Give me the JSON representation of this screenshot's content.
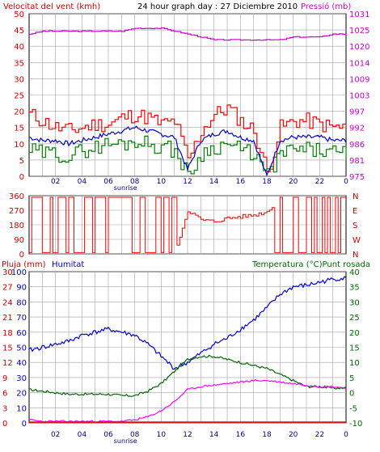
{
  "header": {
    "left_title": "Velocitat del vent (kmh)",
    "center_title": "24 hour graph day : 27 Diciembre 2010",
    "right_title": "Pressió (mb)"
  },
  "x_axis": {
    "ticks": [
      "02",
      "04",
      "06",
      "08",
      "10",
      "12",
      "14",
      "16",
      "18",
      "20",
      "22"
    ],
    "sunrise_label": "sunrise",
    "extra_tick": "0"
  },
  "colors": {
    "wind_gust": "#ff0000",
    "wind_avg": "#0000cc",
    "wind_speed": "#008000",
    "pressure": "#cc00cc",
    "direction": "#ff0000",
    "rain": "#ff0000",
    "humidity": "#0000cc",
    "temperature": "#006600",
    "dew_point": "#ff00ff",
    "grid": "#9ea1a4",
    "frame": "#000000"
  },
  "chart_data": [
    {
      "type": "line",
      "title": "24 hour graph day : 27 Diciembre 2010",
      "left_axis": {
        "label": "Velocitat del vent (kmh)",
        "ticks": [
          0,
          5,
          10,
          15,
          20,
          25,
          30,
          35,
          40,
          45,
          50
        ],
        "ylim": [
          0,
          50
        ]
      },
      "right_axis": {
        "label": "Pressió (mb)",
        "ticks": [
          975,
          981,
          986,
          992,
          997,
          1003,
          1009,
          1014,
          1020,
          1025,
          1031
        ],
        "ylim": [
          975,
          1031
        ]
      },
      "x": [
        0,
        1,
        2,
        3,
        4,
        5,
        6,
        7,
        8,
        9,
        10,
        11,
        12,
        13,
        14,
        15,
        16,
        17,
        18,
        19,
        20,
        21,
        22,
        23,
        24
      ],
      "series": [
        {
          "name": "Velocitat del vent (kmh)",
          "axis": "left",
          "values": [
            19,
            17,
            15,
            14,
            15,
            16,
            16,
            18,
            19,
            18,
            16,
            17,
            5,
            14,
            19,
            21,
            17,
            14,
            1,
            15,
            17,
            17,
            16,
            15,
            15
          ]
        },
        {
          "name": "",
          "axis": "left",
          "values": [
            12,
            11,
            11,
            10,
            11,
            12,
            13,
            14,
            15,
            14,
            13,
            12,
            2,
            11,
            13,
            14,
            12,
            11,
            0,
            11,
            12,
            12,
            12,
            11,
            11
          ]
        },
        {
          "name": "",
          "axis": "left",
          "values": [
            8,
            7,
            7,
            6,
            8,
            9,
            10,
            10,
            11,
            10,
            9,
            8,
            0,
            7,
            9,
            10,
            8,
            7,
            0,
            7,
            8,
            8,
            8,
            7,
            7
          ]
        },
        {
          "name": "Pressió (mb)",
          "axis": "right",
          "values": [
            1024,
            1025,
            1025,
            1025,
            1025,
            1025,
            1025,
            1025,
            1026,
            1026,
            1026,
            1025,
            1024,
            1023,
            1022,
            1022,
            1022,
            1022,
            1022,
            1022,
            1023,
            1023,
            1023,
            1024,
            1024
          ]
        }
      ]
    },
    {
      "type": "line",
      "left_axis": {
        "ticks": [
          0,
          90,
          180,
          270,
          360
        ],
        "ylim": [
          0,
          360
        ]
      },
      "right_axis": {
        "ticks": [
          "N",
          "W",
          "S",
          "E",
          "N"
        ]
      },
      "x": [
        0,
        1,
        2,
        3,
        4,
        5,
        6,
        7,
        8,
        9,
        10,
        11,
        12,
        13,
        14,
        15,
        16,
        17,
        18,
        19,
        20,
        21,
        22,
        23,
        24
      ],
      "series": [
        {
          "name": "",
          "values": [
            350,
            10,
            350,
            20,
            340,
            5,
            355,
            15,
            350,
            10,
            360,
            5,
            270,
            210,
            200,
            220,
            230,
            240,
            260,
            350,
            10,
            350,
            20,
            350,
            0
          ]
        }
      ]
    },
    {
      "type": "line",
      "left_axis_rain": {
        "label": "Pluja (mm)",
        "ticks": [
          0,
          3,
          6,
          9,
          12,
          15,
          18,
          21,
          24,
          27,
          30
        ],
        "ylim": [
          0,
          30
        ]
      },
      "left_axis_humidity": {
        "label": "Humitat",
        "ticks": [
          0,
          10,
          20,
          30,
          40,
          50,
          60,
          70,
          80,
          90,
          100
        ],
        "ylim": [
          0,
          100
        ]
      },
      "right_axis": {
        "label": "Temperatura (°C)Punt rosada",
        "ticks": [
          -10,
          -5,
          0,
          5,
          10,
          15,
          20,
          25,
          30,
          35,
          40
        ],
        "ylim": [
          -10,
          40
        ]
      },
      "x": [
        0,
        1,
        2,
        3,
        4,
        5,
        6,
        7,
        8,
        9,
        10,
        11,
        12,
        13,
        14,
        15,
        16,
        17,
        18,
        19,
        20,
        21,
        22,
        23,
        24
      ],
      "series": [
        {
          "name": "Pluja (mm)",
          "axis": "rain",
          "values": [
            0,
            0,
            0,
            0,
            0,
            0,
            0,
            0,
            0,
            0,
            0,
            0,
            0,
            0,
            0,
            0,
            0,
            0,
            0,
            0,
            0,
            0,
            0,
            0,
            0
          ]
        },
        {
          "name": "Humitat",
          "axis": "humidity",
          "values": [
            48,
            50,
            52,
            54,
            58,
            60,
            62,
            60,
            58,
            52,
            44,
            36,
            40,
            46,
            52,
            56,
            62,
            68,
            76,
            85,
            90,
            91,
            93,
            95,
            96
          ]
        },
        {
          "name": "Temperatura (°C)",
          "axis": "temp",
          "values": [
            1,
            0.5,
            0,
            -0.5,
            -0.5,
            -0.5,
            -0.5,
            -1,
            -1,
            0.5,
            3,
            7,
            11,
            12,
            12,
            11,
            10,
            9,
            8,
            6,
            4,
            2,
            2,
            1.5,
            1.5
          ]
        },
        {
          "name": "Punt rosada",
          "axis": "temp",
          "values": [
            -9,
            -9.5,
            -9.5,
            -9.5,
            -9.5,
            -9.5,
            -9.5,
            -9.5,
            -9,
            -8,
            -6,
            -3,
            1,
            2,
            2.5,
            3,
            3.5,
            4,
            4,
            3.5,
            3,
            2.5,
            2,
            2,
            1.5
          ]
        }
      ]
    }
  ],
  "panels": {
    "direction": {
      "right_labels": [
        "N",
        "W",
        "S",
        "E",
        "N"
      ]
    },
    "bottom": {
      "rain_label": "Pluja (mm)",
      "humidity_label": "Humitat",
      "temp_label": "Temperatura (°C)Punt rosada"
    }
  }
}
